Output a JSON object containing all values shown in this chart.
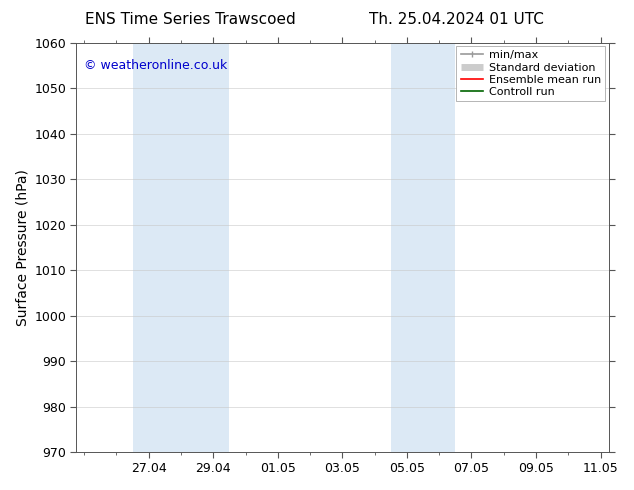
{
  "title_left": "ENS Time Series Trawscoed",
  "title_right": "Th. 25.04.2024 01 UTC",
  "ylabel": "Surface Pressure (hPa)",
  "ylim": [
    970,
    1060
  ],
  "yticks": [
    970,
    980,
    990,
    1000,
    1010,
    1020,
    1030,
    1040,
    1050,
    1060
  ],
  "xtick_labels": [
    "27.04",
    "29.04",
    "01.05",
    "03.05",
    "05.05",
    "07.05",
    "09.05",
    "11.05"
  ],
  "bg_color": "#ffffff",
  "plot_bg_color": "#ffffff",
  "shade_color": "#dce9f5",
  "shaded_day_ranges": [
    [
      1.5,
      3.5
    ],
    [
      3.5,
      4.5
    ],
    [
      9.5,
      10.5
    ],
    [
      10.5,
      11.5
    ]
  ],
  "watermark_text": "© weatheronline.co.uk",
  "watermark_color": "#0000cc",
  "legend_entries": [
    {
      "label": "min/max",
      "color": "#999999",
      "lw": 1.2
    },
    {
      "label": "Standard deviation",
      "color": "#cccccc",
      "lw": 5.0
    },
    {
      "label": "Ensemble mean run",
      "color": "#ff0000",
      "lw": 1.2
    },
    {
      "label": "Controll run",
      "color": "#006400",
      "lw": 1.2
    }
  ],
  "title_fontsize": 11,
  "axis_label_fontsize": 10,
  "tick_fontsize": 9,
  "legend_fontsize": 8,
  "watermark_fontsize": 9
}
